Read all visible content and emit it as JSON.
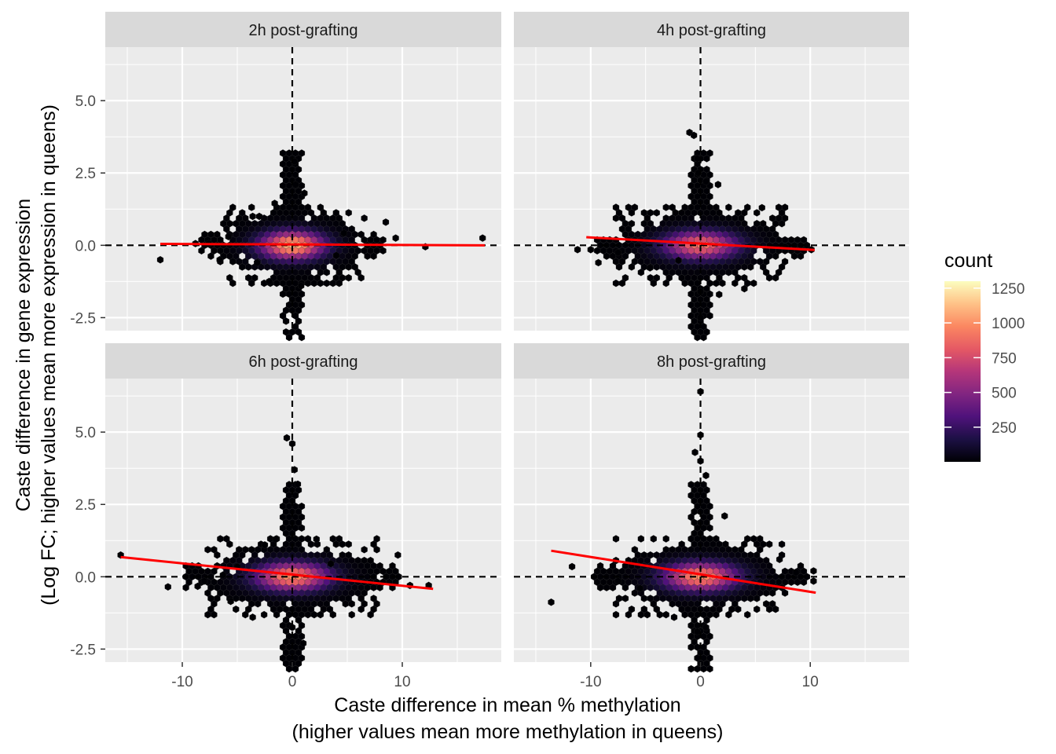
{
  "chart_data": {
    "type": "heatmap",
    "geom": "hexbin",
    "xlabel": [
      "Caste difference in mean % methylation",
      "(higher values mean more methylation in queens)"
    ],
    "ylabel": [
      "Caste difference in gene expression",
      "(Log FC; higher values mean more expression in queens)"
    ],
    "xlim": [
      -17,
      19
    ],
    "ylim": [
      -2.95,
      6.85
    ],
    "x_ticks": [
      -10,
      0,
      10
    ],
    "x_tick_labels": [
      "-10",
      "0",
      "10"
    ],
    "y_ticks": [
      -2.5,
      0,
      2.5,
      5
    ],
    "y_tick_labels": [
      "-2.5",
      "0.0",
      "2.5",
      "5.0"
    ],
    "reference_lines": {
      "x": 0,
      "y": 0,
      "style": "dashed"
    },
    "grid": true,
    "legend": {
      "title": "count",
      "placement": "right",
      "colorscale": "magma",
      "ticks": [
        250,
        500,
        750,
        1000,
        1250
      ],
      "tick_labels": [
        "250",
        "500",
        "750",
        "1000",
        "1250"
      ],
      "range": [
        1,
        1300
      ]
    },
    "panels": [
      {
        "label": "2h post-grafting",
        "fit_line": {
          "x": [
            -12,
            17.5
          ],
          "y": [
            0.05,
            0.0
          ]
        },
        "core": {
          "max_count": 1100
        },
        "outliers": [
          [
            -12,
            -0.5
          ],
          [
            -8.8,
            0.06
          ],
          [
            -7.6,
            0.06
          ],
          [
            -6.6,
            -0.5
          ],
          [
            -5.8,
            0.3
          ],
          [
            -3.6,
            1.0
          ],
          [
            -3.0,
            1.0
          ],
          [
            -3.2,
            -0.6
          ],
          [
            -2.1,
            -1.25
          ],
          [
            -1.6,
            1.45
          ],
          [
            0.2,
            2.9
          ],
          [
            0.3,
            2.1
          ],
          [
            1.1,
            1.8
          ],
          [
            0.8,
            -1.4
          ],
          [
            4.7,
            0.42
          ],
          [
            4.0,
            -0.35
          ],
          [
            8.5,
            0.8
          ],
          [
            9.4,
            0.25
          ],
          [
            12.1,
            -0.05
          ],
          [
            17.3,
            0.25
          ]
        ]
      },
      {
        "label": "4h post-grafting",
        "fit_line": {
          "x": [
            -10.4,
            10.4
          ],
          "y": [
            0.28,
            -0.16
          ]
        },
        "core": {
          "max_count": 900
        },
        "outliers": [
          [
            -11.2,
            -0.15
          ],
          [
            -10.0,
            -0.15
          ],
          [
            -9.3,
            -0.6
          ],
          [
            -7.5,
            -0.25
          ],
          [
            -4.6,
            -0.78
          ],
          [
            -2.0,
            -0.52
          ],
          [
            -1.0,
            3.9
          ],
          [
            -0.6,
            3.8
          ],
          [
            -0.3,
            3.0
          ],
          [
            -0.2,
            2.5
          ],
          [
            0.5,
            2.2
          ],
          [
            1.6,
            2.1
          ],
          [
            0.0,
            -1.6
          ],
          [
            0.0,
            -2.5
          ],
          [
            1.7,
            -1.7
          ],
          [
            4.0,
            -1.5
          ],
          [
            5.6,
            1.3
          ],
          [
            7.7,
            -0.05
          ],
          [
            10.1,
            -0.15
          ]
        ]
      },
      {
        "label": "6h post-grafting",
        "fit_line": {
          "x": [
            -15.6,
            12.8
          ],
          "y": [
            0.68,
            -0.42
          ]
        },
        "core": {
          "max_count": 1000
        },
        "outliers": [
          [
            -15.6,
            0.75
          ],
          [
            -11.3,
            -0.35
          ],
          [
            -8.6,
            -0.33
          ],
          [
            -8.0,
            -0.15
          ],
          [
            -6.3,
            0.06
          ],
          [
            -5.6,
            -0.85
          ],
          [
            -5.0,
            0.35
          ],
          [
            -3.6,
            -1.4
          ],
          [
            -2.5,
            1.1
          ],
          [
            -1.5,
            1.3
          ],
          [
            -0.5,
            4.8
          ],
          [
            0.0,
            4.6
          ],
          [
            0.2,
            3.7
          ],
          [
            0.5,
            3.2
          ],
          [
            2.2,
            1.3
          ],
          [
            3.5,
            0.45
          ],
          [
            0.0,
            -1.75
          ],
          [
            1.0,
            -2.3
          ],
          [
            9.6,
            0.75
          ],
          [
            10.7,
            -0.3
          ],
          [
            12.4,
            -0.3
          ]
        ]
      },
      {
        "label": "8h post-grafting",
        "fit_line": {
          "x": [
            -13.6,
            10.5
          ],
          "y": [
            0.9,
            -0.55
          ]
        },
        "core": {
          "max_count": 1000
        },
        "outliers": [
          [
            -13.6,
            -0.88
          ],
          [
            -11.7,
            0.35
          ],
          [
            -7.5,
            -0.15
          ],
          [
            -5.5,
            -0.4
          ],
          [
            -2.4,
            -1.4
          ],
          [
            -0.5,
            4.3
          ],
          [
            0.0,
            6.4
          ],
          [
            0.0,
            4.9
          ],
          [
            0.0,
            4.0
          ],
          [
            0.5,
            3.5
          ],
          [
            2.2,
            2.1
          ],
          [
            -0.3,
            -1.9
          ],
          [
            0.5,
            -1.75
          ],
          [
            7.2,
            0.6
          ],
          [
            8.7,
            0.15
          ],
          [
            10.3,
            0.2
          ],
          [
            10.3,
            -0.15
          ]
        ]
      }
    ]
  }
}
